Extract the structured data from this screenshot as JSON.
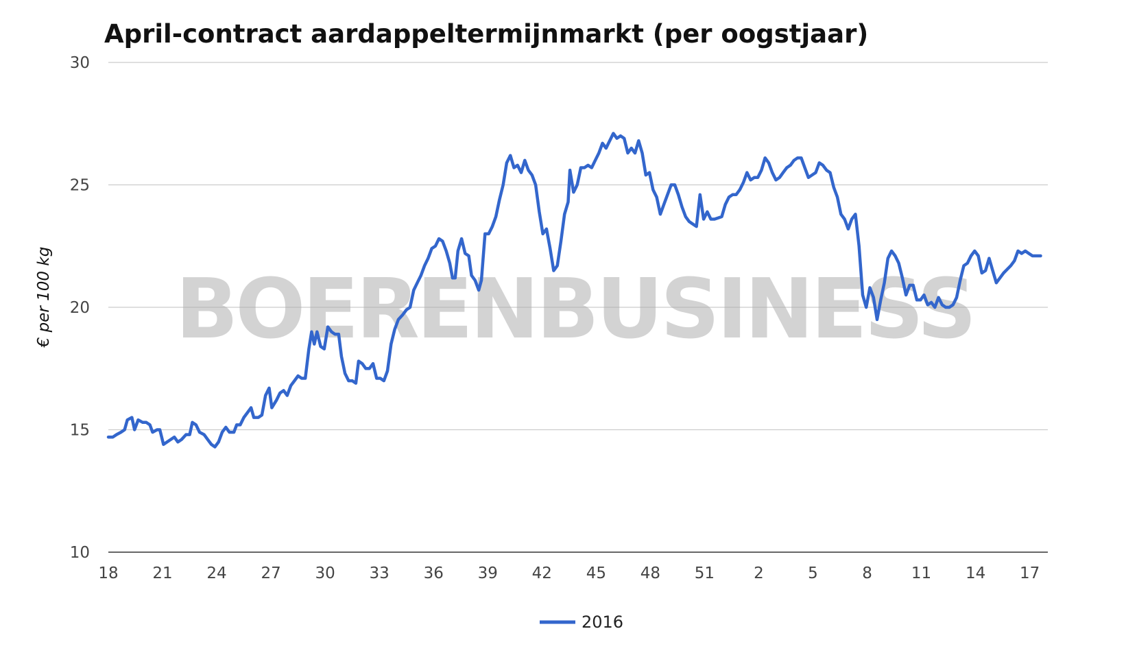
{
  "watermark": "BOERENBUSINESS",
  "chart_data": {
    "type": "line",
    "title": "April-contract aardappeltermijnmarkt (per oogstjaar)",
    "xlabel": "",
    "ylabel": "€ per 100 kg",
    "ylim": [
      10,
      30
    ],
    "yticks": [
      10,
      15,
      20,
      25,
      30
    ],
    "xtick_labels": [
      "18",
      "21",
      "24",
      "27",
      "30",
      "33",
      "36",
      "39",
      "42",
      "45",
      "48",
      "51",
      "2",
      "5",
      "8",
      "11",
      "14",
      "17"
    ],
    "x_range": [
      0,
      52
    ],
    "x_unit": "weeks since week 18 of 2016 (tick labels are week numbers)",
    "grid": true,
    "legend_position": "bottom",
    "color": "#3366cc",
    "series": [
      {
        "name": "2016",
        "points": [
          [
            0.0,
            14.7
          ],
          [
            0.25,
            14.7
          ],
          [
            0.45,
            14.8
          ],
          [
            0.7,
            14.9
          ],
          [
            0.9,
            15.0
          ],
          [
            1.05,
            15.4
          ],
          [
            1.3,
            15.5
          ],
          [
            1.45,
            15.0
          ],
          [
            1.65,
            15.4
          ],
          [
            1.9,
            15.3
          ],
          [
            2.1,
            15.3
          ],
          [
            2.3,
            15.2
          ],
          [
            2.45,
            14.9
          ],
          [
            2.7,
            15.0
          ],
          [
            2.85,
            15.0
          ],
          [
            3.05,
            14.4
          ],
          [
            3.25,
            14.5
          ],
          [
            3.45,
            14.6
          ],
          [
            3.65,
            14.7
          ],
          [
            3.85,
            14.5
          ],
          [
            4.05,
            14.6
          ],
          [
            4.3,
            14.8
          ],
          [
            4.5,
            14.8
          ],
          [
            4.65,
            15.3
          ],
          [
            4.85,
            15.2
          ],
          [
            5.05,
            14.9
          ],
          [
            5.3,
            14.8
          ],
          [
            5.5,
            14.6
          ],
          [
            5.7,
            14.4
          ],
          [
            5.9,
            14.3
          ],
          [
            6.1,
            14.5
          ],
          [
            6.3,
            14.9
          ],
          [
            6.5,
            15.1
          ],
          [
            6.7,
            14.9
          ],
          [
            6.95,
            14.9
          ],
          [
            7.1,
            15.2
          ],
          [
            7.3,
            15.2
          ],
          [
            7.5,
            15.5
          ],
          [
            7.7,
            15.7
          ],
          [
            7.9,
            15.9
          ],
          [
            8.05,
            15.5
          ],
          [
            8.3,
            15.5
          ],
          [
            8.5,
            15.6
          ],
          [
            8.7,
            16.4
          ],
          [
            8.9,
            16.7
          ],
          [
            9.05,
            15.9
          ],
          [
            9.3,
            16.2
          ],
          [
            9.5,
            16.5
          ],
          [
            9.7,
            16.6
          ],
          [
            9.9,
            16.4
          ],
          [
            10.1,
            16.8
          ],
          [
            10.3,
            17.0
          ],
          [
            10.5,
            17.2
          ],
          [
            10.7,
            17.1
          ],
          [
            10.9,
            17.1
          ],
          [
            11.1,
            18.3
          ],
          [
            11.25,
            19.0
          ],
          [
            11.4,
            18.5
          ],
          [
            11.55,
            19.0
          ],
          [
            11.75,
            18.4
          ],
          [
            11.95,
            18.3
          ],
          [
            12.15,
            19.2
          ],
          [
            12.35,
            19.0
          ],
          [
            12.55,
            18.9
          ],
          [
            12.75,
            18.9
          ],
          [
            12.9,
            18.0
          ],
          [
            13.1,
            17.3
          ],
          [
            13.3,
            17.0
          ],
          [
            13.5,
            17.0
          ],
          [
            13.7,
            16.9
          ],
          [
            13.85,
            17.8
          ],
          [
            14.05,
            17.7
          ],
          [
            14.25,
            17.5
          ],
          [
            14.45,
            17.5
          ],
          [
            14.65,
            17.7
          ],
          [
            14.85,
            17.1
          ],
          [
            15.05,
            17.1
          ],
          [
            15.25,
            17.0
          ],
          [
            15.45,
            17.4
          ],
          [
            15.65,
            18.5
          ],
          [
            15.85,
            19.1
          ],
          [
            16.05,
            19.5
          ],
          [
            16.3,
            19.7
          ],
          [
            16.5,
            19.9
          ],
          [
            16.7,
            20.0
          ],
          [
            16.9,
            20.7
          ],
          [
            17.1,
            21.0
          ],
          [
            17.3,
            21.3
          ],
          [
            17.5,
            21.7
          ],
          [
            17.7,
            22.0
          ],
          [
            17.9,
            22.4
          ],
          [
            18.1,
            22.5
          ],
          [
            18.3,
            22.8
          ],
          [
            18.5,
            22.7
          ],
          [
            18.7,
            22.3
          ],
          [
            18.9,
            21.8
          ],
          [
            19.05,
            21.2
          ],
          [
            19.2,
            21.2
          ],
          [
            19.35,
            22.3
          ],
          [
            19.55,
            22.8
          ],
          [
            19.75,
            22.2
          ],
          [
            19.95,
            22.1
          ],
          [
            20.1,
            21.3
          ],
          [
            20.3,
            21.1
          ],
          [
            20.5,
            20.7
          ],
          [
            20.65,
            21.1
          ],
          [
            20.85,
            23.0
          ],
          [
            21.05,
            23.0
          ],
          [
            21.25,
            23.3
          ],
          [
            21.45,
            23.7
          ],
          [
            21.65,
            24.4
          ],
          [
            21.85,
            25.0
          ],
          [
            22.05,
            25.9
          ],
          [
            22.25,
            26.2
          ],
          [
            22.45,
            25.7
          ],
          [
            22.65,
            25.8
          ],
          [
            22.85,
            25.5
          ],
          [
            23.05,
            26.0
          ],
          [
            23.25,
            25.6
          ],
          [
            23.45,
            25.4
          ],
          [
            23.65,
            25.0
          ],
          [
            23.85,
            23.9
          ],
          [
            24.05,
            23.0
          ],
          [
            24.25,
            23.2
          ],
          [
            24.45,
            22.4
          ],
          [
            24.65,
            21.5
          ],
          [
            24.85,
            21.7
          ],
          [
            25.05,
            22.7
          ],
          [
            25.25,
            23.8
          ],
          [
            25.45,
            24.3
          ],
          [
            25.55,
            25.6
          ],
          [
            25.75,
            24.7
          ],
          [
            25.95,
            25.0
          ],
          [
            26.15,
            25.7
          ],
          [
            26.35,
            25.7
          ],
          [
            26.55,
            25.8
          ],
          [
            26.75,
            25.7
          ],
          [
            26.95,
            26.0
          ],
          [
            27.15,
            26.3
          ],
          [
            27.35,
            26.7
          ],
          [
            27.55,
            26.5
          ],
          [
            27.75,
            26.8
          ],
          [
            27.95,
            27.1
          ],
          [
            28.15,
            26.9
          ],
          [
            28.35,
            27.0
          ],
          [
            28.55,
            26.9
          ],
          [
            28.75,
            26.3
          ],
          [
            28.95,
            26.5
          ],
          [
            29.15,
            26.3
          ],
          [
            29.35,
            26.8
          ],
          [
            29.55,
            26.3
          ],
          [
            29.75,
            25.4
          ],
          [
            29.95,
            25.5
          ],
          [
            30.15,
            24.8
          ],
          [
            30.35,
            24.5
          ],
          [
            30.55,
            23.8
          ],
          [
            30.75,
            24.2
          ],
          [
            30.95,
            24.6
          ],
          [
            31.15,
            25.0
          ],
          [
            31.35,
            25.0
          ],
          [
            31.55,
            24.6
          ],
          [
            31.75,
            24.1
          ],
          [
            31.95,
            23.7
          ],
          [
            32.15,
            23.5
          ],
          [
            32.35,
            23.4
          ],
          [
            32.55,
            23.3
          ],
          [
            32.75,
            24.6
          ],
          [
            32.95,
            23.6
          ],
          [
            33.15,
            23.9
          ],
          [
            33.35,
            23.6
          ],
          [
            33.55,
            23.6
          ],
          [
            33.75,
            23.65
          ],
          [
            33.95,
            23.7
          ],
          [
            34.15,
            24.2
          ],
          [
            34.35,
            24.5
          ],
          [
            34.55,
            24.6
          ],
          [
            34.75,
            24.6
          ],
          [
            34.95,
            24.8
          ],
          [
            35.15,
            25.1
          ],
          [
            35.35,
            25.5
          ],
          [
            35.55,
            25.2
          ],
          [
            35.75,
            25.3
          ],
          [
            35.95,
            25.3
          ],
          [
            36.15,
            25.6
          ],
          [
            36.35,
            26.1
          ],
          [
            36.55,
            25.9
          ],
          [
            36.75,
            25.5
          ],
          [
            36.95,
            25.2
          ],
          [
            37.15,
            25.3
          ],
          [
            37.35,
            25.5
          ],
          [
            37.55,
            25.7
          ],
          [
            37.75,
            25.8
          ],
          [
            37.95,
            26.0
          ],
          [
            38.15,
            26.1
          ],
          [
            38.35,
            26.1
          ],
          [
            38.55,
            25.7
          ],
          [
            38.75,
            25.3
          ],
          [
            38.95,
            25.4
          ],
          [
            39.15,
            25.5
          ],
          [
            39.35,
            25.9
          ],
          [
            39.55,
            25.8
          ],
          [
            39.75,
            25.6
          ],
          [
            39.95,
            25.5
          ],
          [
            40.15,
            24.9
          ],
          [
            40.35,
            24.5
          ],
          [
            40.55,
            23.8
          ],
          [
            40.75,
            23.6
          ],
          [
            40.95,
            23.2
          ],
          [
            41.15,
            23.6
          ],
          [
            41.35,
            23.8
          ],
          [
            41.55,
            22.5
          ],
          [
            41.75,
            20.5
          ],
          [
            41.95,
            20.0
          ],
          [
            42.15,
            20.8
          ],
          [
            42.35,
            20.4
          ],
          [
            42.55,
            19.5
          ],
          [
            42.75,
            20.3
          ],
          [
            42.95,
            21.0
          ],
          [
            43.15,
            22.0
          ],
          [
            43.35,
            22.3
          ],
          [
            43.55,
            22.1
          ],
          [
            43.75,
            21.8
          ],
          [
            43.95,
            21.2
          ],
          [
            44.15,
            20.5
          ],
          [
            44.35,
            20.9
          ],
          [
            44.55,
            20.9
          ],
          [
            44.75,
            20.3
          ],
          [
            44.95,
            20.3
          ],
          [
            45.15,
            20.5
          ],
          [
            45.35,
            20.1
          ],
          [
            45.55,
            20.2
          ],
          [
            45.75,
            20.0
          ],
          [
            45.95,
            20.4
          ],
          [
            46.15,
            20.1
          ],
          [
            46.35,
            20.0
          ],
          [
            46.55,
            20.0
          ],
          [
            46.75,
            20.1
          ],
          [
            46.95,
            20.4
          ],
          [
            47.15,
            21.1
          ],
          [
            47.35,
            21.7
          ],
          [
            47.55,
            21.8
          ],
          [
            47.75,
            22.1
          ],
          [
            47.95,
            22.3
          ],
          [
            48.15,
            22.1
          ],
          [
            48.35,
            21.4
          ],
          [
            48.55,
            21.5
          ],
          [
            48.75,
            22.0
          ],
          [
            48.95,
            21.5
          ],
          [
            49.15,
            21.0
          ],
          [
            49.35,
            21.2
          ],
          [
            49.55,
            21.4
          ],
          [
            49.75,
            21.55
          ],
          [
            49.95,
            21.7
          ],
          [
            50.15,
            21.9
          ],
          [
            50.35,
            22.3
          ],
          [
            50.55,
            22.2
          ],
          [
            50.75,
            22.3
          ],
          [
            50.95,
            22.2
          ],
          [
            51.15,
            22.1
          ],
          [
            51.35,
            22.1
          ],
          [
            51.6,
            22.1
          ]
        ]
      }
    ]
  }
}
